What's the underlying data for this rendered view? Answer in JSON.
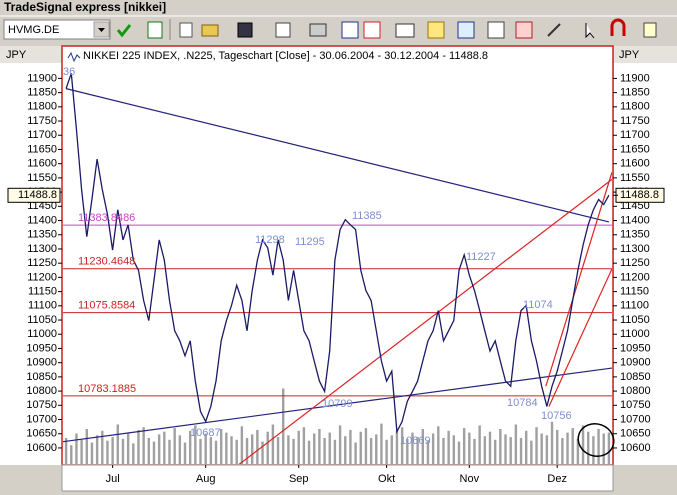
{
  "window": {
    "title": "TradeSignal express [nikkei]"
  },
  "toolbar": {
    "symbol": "HVMG.DE"
  },
  "chart_data": {
    "type": "line",
    "title": "NIKKEI 225 INDEX, .N225, Tageschart [Close] - 30.06.2004 - 30.12.2004 - 11488.8",
    "y_unit": "JPY",
    "last_value": 11488.8,
    "series": [
      {
        "name": "Close",
        "color": "#1a1a66",
        "values": [
          11864,
          11918,
          11722,
          11509,
          11343,
          11474,
          11616,
          11509,
          11421,
          11296,
          11438,
          11332,
          11385,
          11261,
          11225,
          11119,
          11048,
          11190,
          11332,
          11261,
          11119,
          11012,
          10977,
          10924,
          10977,
          10835,
          10728,
          10693,
          10746,
          10835,
          10977,
          11048,
          11101,
          11172,
          11119,
          11012,
          11154,
          11261,
          11332,
          11304,
          11208,
          11332,
          11261,
          11119,
          11225,
          11119,
          11012,
          10977,
          10906,
          10835,
          10799,
          10941,
          11261,
          11368,
          11403,
          11385,
          11368,
          11225,
          11154,
          11119,
          11012,
          10906,
          10835,
          10870,
          10657,
          10693,
          10764,
          10799,
          10835,
          10906,
          10977,
          11012,
          11083,
          10977,
          11012,
          11048,
          11225,
          11279,
          11208,
          11154,
          11083,
          11012,
          10941,
          10977,
          10906,
          10835,
          10817,
          10977,
          11083,
          11101,
          10977,
          10906,
          10817,
          10746,
          10817,
          10870,
          10941,
          11012,
          11119,
          11225,
          11314,
          11385,
          11438,
          11474,
          11456,
          11489
        ]
      }
    ],
    "volume": {
      "color": "#a0a0a0",
      "values": [
        30,
        22,
        35,
        28,
        40,
        25,
        33,
        38,
        27,
        31,
        45,
        29,
        36,
        24,
        39,
        42,
        30,
        26,
        34,
        37,
        28,
        41,
        33,
        25,
        38,
        44,
        29,
        35,
        31,
        27,
        40,
        36,
        32,
        28,
        43,
        30,
        34,
        39,
        26,
        37,
        45,
        31,
        85,
        33,
        29,
        38,
        42,
        27,
        35,
        40,
        30,
        36,
        28,
        44,
        32,
        39,
        25,
        37,
        41,
        30,
        34,
        46,
        28,
        33,
        38,
        42,
        29,
        36,
        31,
        40,
        27,
        35,
        43,
        30,
        38,
        33,
        26,
        41,
        36,
        29,
        44,
        32,
        37,
        28,
        40,
        34,
        31,
        45,
        30,
        38,
        27,
        42,
        35,
        33,
        48,
        39,
        30,
        36,
        41,
        29,
        44,
        37,
        32,
        40,
        35,
        36
      ]
    },
    "levels": [
      {
        "value": 11383.8486,
        "color": "#cc44cc"
      },
      {
        "value": 11230.4648,
        "color": "#cc2222"
      },
      {
        "value": 11075.8584,
        "color": "#cc2222"
      },
      {
        "value": 10783.1885,
        "color": "#cc2222"
      }
    ],
    "trendlines": [
      {
        "color": "#22227a",
        "from": [
          0,
          11864
        ],
        "to": [
          105,
          11395
        ]
      },
      {
        "color": "#22227a",
        "from": [
          -0.6,
          10622
        ],
        "to": [
          105.6,
          10881
        ]
      },
      {
        "color": "#dd2222",
        "from": [
          33.3,
          10540
        ],
        "to": [
          105.6,
          11545
        ]
      },
      {
        "color": "#dd2222",
        "from": [
          92.8,
          10817
        ],
        "to": [
          105.6,
          11570
        ]
      },
      {
        "color": "#dd2222",
        "from": [
          93.4,
          10746
        ],
        "to": [
          105.6,
          11230
        ]
      }
    ],
    "point_labels": [
      "36",
      "11298",
      "11295",
      "11385",
      "10799",
      "10687",
      "10669",
      "11227",
      "11074",
      "10784",
      "10756"
    ],
    "xlim": [
      -0.6,
      105.6
    ],
    "xticks": [
      {
        "value": 9,
        "label": "Jul"
      },
      {
        "value": 27,
        "label": "Aug"
      },
      {
        "value": 45,
        "label": "Sep"
      },
      {
        "value": 62,
        "label": "Okt"
      },
      {
        "value": 78,
        "label": "Nov"
      },
      {
        "value": 95,
        "label": "Dez"
      }
    ],
    "ylim": [
      10540,
      12014
    ],
    "yticks": [
      11900,
      11850,
      11800,
      11750,
      11700,
      11650,
      11600,
      11550,
      11500,
      11450,
      11400,
      11350,
      11300,
      11250,
      11200,
      11150,
      11100,
      11050,
      11000,
      10950,
      10900,
      10850,
      10800,
      10750,
      10700,
      10650,
      10600
    ]
  }
}
